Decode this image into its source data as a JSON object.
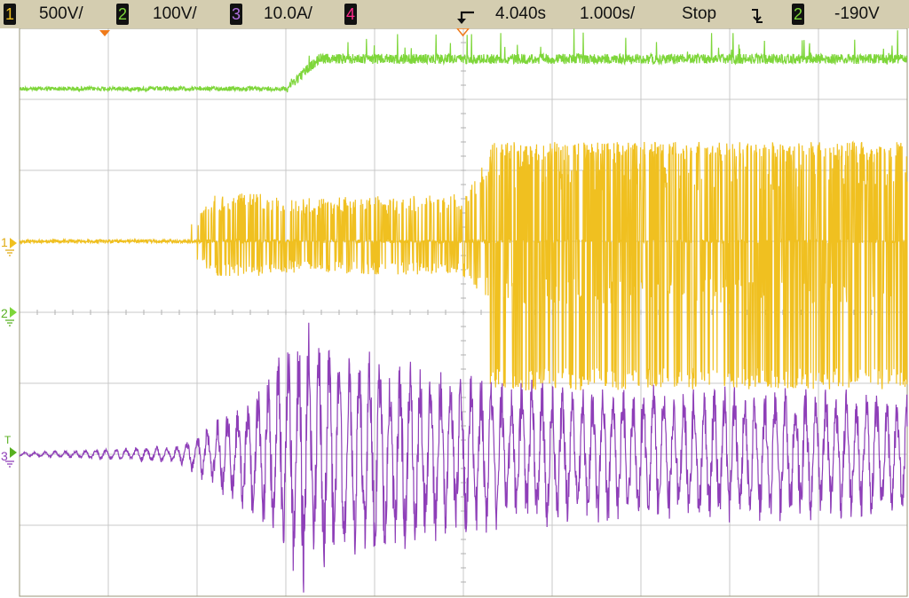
{
  "status_bar": {
    "ch1": {
      "num": "1",
      "scale": "500V/",
      "color": "#f0c020"
    },
    "ch2": {
      "num": "2",
      "scale": "100V/",
      "color": "#7ed63a"
    },
    "ch3": {
      "num": "3",
      "scale": "10.0A/",
      "color": "#b070e0"
    },
    "ch4": {
      "num": "4",
      "color": "#ff2a8a"
    },
    "trigger_delay": "4.040s",
    "timebase": "1.000s/",
    "run_state": "Stop",
    "trigger_slope_icon": "falling-edge-icon",
    "trigger_source": "2",
    "trigger_level": "-190V"
  },
  "markers": {
    "ch1_ground": "1",
    "ch2_ground": "2",
    "trigger_level_marker": "T",
    "ch3_ground": "3"
  },
  "chart_data": {
    "type": "line",
    "x_unit": "s",
    "xlim": [
      -5,
      5
    ],
    "divisions": {
      "x": 10,
      "y": 8
    },
    "grid": true,
    "series": [
      {
        "channel": "2",
        "color": "#7ed63a",
        "envelope": [
          [
            -5,
            0.05
          ],
          [
            -2.5,
            0.05
          ],
          [
            -2,
            0.12
          ],
          [
            -1.8,
            0.4
          ],
          [
            -1.6,
            0.55
          ],
          [
            -1.4,
            0.4
          ],
          [
            -1.2,
            0.45
          ],
          [
            5,
            0.45
          ]
        ]
      },
      {
        "channel": "1",
        "color": "#f0c020",
        "envelope": [
          [
            -5,
            0.02
          ],
          [
            -3.2,
            0.04
          ],
          [
            -2.8,
            0.9
          ],
          [
            -2.3,
            0.9
          ],
          [
            -2.0,
            0.8
          ],
          [
            0,
            0.9
          ],
          [
            0.3,
            1.6
          ],
          [
            5,
            1.6
          ]
        ]
      },
      {
        "channel": "3",
        "color": "#8e3fb8",
        "envelope": [
          [
            -5,
            0.02
          ],
          [
            -3.2,
            0.1
          ],
          [
            -2.5,
            0.6
          ],
          [
            -1.9,
            1.3
          ],
          [
            -1.8,
            1.5
          ],
          [
            -1.5,
            1.2
          ],
          [
            0,
            0.9
          ],
          [
            1,
            0.8
          ],
          [
            5,
            0.7
          ]
        ]
      }
    ]
  }
}
